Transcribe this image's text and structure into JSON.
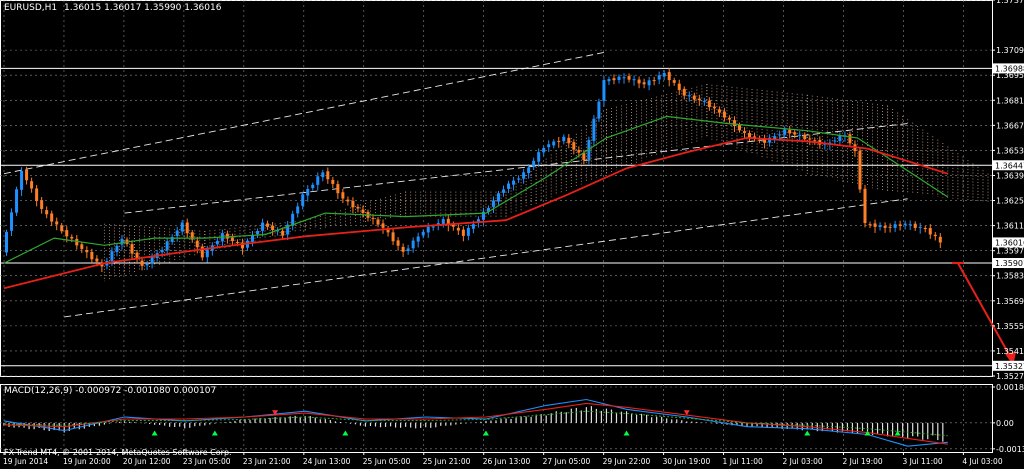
{
  "window": {
    "symbol": "EURUSD,H1",
    "ohlc": "1.36015 1.36017 1.35990 1.36016",
    "copyright": "FX-Trend MT4, © 2001-2014, MetaQuotes Software Corp."
  },
  "colors": {
    "background": "#000000",
    "grid": "#8a8a8a",
    "bull": "#1e90ff",
    "bear": "#ff7f27",
    "ma_slow": "#e8201a",
    "ma_fast": "#2fa82f",
    "cloud": "#d8a888",
    "arrow": "#e8201a",
    "macd_hist": "#e0e0e0",
    "macd_main": "#1e90ff",
    "macd_signal": "#e8201a",
    "macd_dots": "#2fa82f",
    "marker_up": "#00ff40",
    "marker_down": "#ff3030",
    "price_label_bg": "#ffffff",
    "price_label_fg": "#000000"
  },
  "chart_data": [
    {
      "type": "candlestick",
      "ylim": [
        1.3527,
        1.3737
      ],
      "yticks": [
        1.3737,
        1.3709,
        1.3695,
        1.3681,
        1.3667,
        1.3653,
        1.3639,
        1.3625,
        1.3611,
        1.3597,
        1.3583,
        1.3569,
        1.3555,
        1.3541,
        1.3527
      ],
      "xtick_labels": [
        "19 Jun 2014",
        "19 Jun 20:00",
        "20 Jun 12:00",
        "23 Jun 05:00",
        "23 Jun 21:00",
        "24 Jun 13:00",
        "25 Jun 05:00",
        "25 Jun 21:00",
        "26 Jun 13:00",
        "27 Jun 05:00",
        "29 Jun 22:00",
        "30 Jun 19:00",
        "1 Jul 11:00",
        "2 Jul 03:00",
        "2 Jul 19:00",
        "3 Jul 11:00",
        "4 Jul 03:00"
      ],
      "horizontal_levels": [
        {
          "value": 1.36988,
          "label": "1.36988"
        },
        {
          "value": 1.36447,
          "label": "1.36447"
        },
        {
          "value": 1.35901,
          "label": "1.35901"
        },
        {
          "value": 1.35327,
          "label": "1.35327"
        }
      ],
      "current_price": {
        "value": 1.36016,
        "label": "1.36016"
      },
      "price_path": [
        [
          0,
          1.3596
        ],
        [
          4,
          1.3642
        ],
        [
          8,
          1.362
        ],
        [
          12,
          1.3608
        ],
        [
          16,
          1.3598
        ],
        [
          20,
          1.3588
        ],
        [
          24,
          1.3604
        ],
        [
          28,
          1.3588
        ],
        [
          32,
          1.3598
        ],
        [
          36,
          1.3612
        ],
        [
          40,
          1.3594
        ],
        [
          44,
          1.3606
        ],
        [
          48,
          1.3599
        ],
        [
          52,
          1.3612
        ],
        [
          56,
          1.3606
        ],
        [
          60,
          1.3628
        ],
        [
          64,
          1.3641
        ],
        [
          68,
          1.3626
        ],
        [
          72,
          1.3618
        ],
        [
          76,
          1.361
        ],
        [
          80,
          1.3596
        ],
        [
          84,
          1.3608
        ],
        [
          88,
          1.3614
        ],
        [
          92,
          1.3606
        ],
        [
          96,
          1.3618
        ],
        [
          100,
          1.3632
        ],
        [
          104,
          1.364
        ],
        [
          108,
          1.3655
        ],
        [
          112,
          1.366
        ],
        [
          116,
          1.3648
        ],
        [
          120,
          1.3692
        ],
        [
          124,
          1.3694
        ],
        [
          128,
          1.369
        ],
        [
          132,
          1.3696
        ],
        [
          136,
          1.3684
        ],
        [
          140,
          1.368
        ],
        [
          144,
          1.3672
        ],
        [
          148,
          1.3662
        ],
        [
          152,
          1.3658
        ],
        [
          156,
          1.3664
        ],
        [
          160,
          1.366
        ],
        [
          164,
          1.3656
        ],
        [
          168,
          1.3662
        ],
        [
          170,
          1.3652
        ],
        [
          172,
          1.3612
        ],
        [
          176,
          1.361
        ],
        [
          180,
          1.3612
        ],
        [
          184,
          1.3609
        ],
        [
          187,
          1.3602
        ]
      ],
      "channel": {
        "upper": [
          [
            0,
            1.364
          ],
          [
            120,
            1.3708
          ]
        ],
        "lower": [
          [
            12,
            1.356
          ],
          [
            180,
            1.3626
          ]
        ],
        "middle": [
          [
            24,
            1.3618
          ],
          [
            180,
            1.3668
          ]
        ]
      },
      "ma_slow": [
        [
          0,
          1.3576
        ],
        [
          20,
          1.359
        ],
        [
          40,
          1.3598
        ],
        [
          60,
          1.3605
        ],
        [
          80,
          1.361
        ],
        [
          100,
          1.3614
        ],
        [
          112,
          1.3628
        ],
        [
          124,
          1.3643
        ],
        [
          136,
          1.3652
        ],
        [
          148,
          1.366
        ],
        [
          160,
          1.3658
        ],
        [
          172,
          1.3654
        ],
        [
          188,
          1.364
        ]
      ],
      "ma_fast": [
        [
          0,
          1.359
        ],
        [
          10,
          1.3604
        ],
        [
          20,
          1.36
        ],
        [
          30,
          1.3604
        ],
        [
          40,
          1.3604
        ],
        [
          52,
          1.3606
        ],
        [
          64,
          1.3618
        ],
        [
          80,
          1.3616
        ],
        [
          96,
          1.3618
        ],
        [
          108,
          1.3638
        ],
        [
          120,
          1.366
        ],
        [
          132,
          1.3672
        ],
        [
          144,
          1.3668
        ],
        [
          160,
          1.3664
        ],
        [
          170,
          1.366
        ],
        [
          188,
          1.3627
        ]
      ],
      "cloud": [
        [
          20,
          1.358,
          1.3612
        ],
        [
          40,
          1.3596,
          1.3608
        ],
        [
          60,
          1.3608,
          1.3614
        ],
        [
          80,
          1.3616,
          1.363
        ],
        [
          100,
          1.3616,
          1.363
        ],
        [
          120,
          1.364,
          1.3676
        ],
        [
          140,
          1.366,
          1.369
        ],
        [
          160,
          1.364,
          1.3684
        ],
        [
          176,
          1.363,
          1.3678
        ],
        [
          196,
          1.3624,
          1.364
        ]
      ]
    },
    {
      "type": "macd",
      "title": "MACD(12,26,9) -0.000972 -0.001080 0.000107",
      "ylim": [
        -0.0015,
        0.002
      ],
      "yticks": [
        0.001845,
        0.0,
        -0.001338
      ],
      "ytick_labels": [
        "0.001845",
        "0.00",
        "-0.001338"
      ],
      "histogram": [
        [
          0,
          -0.0002
        ],
        [
          12,
          -0.0005
        ],
        [
          24,
          0.0001
        ],
        [
          36,
          -0.0003
        ],
        [
          48,
          0.0002
        ],
        [
          60,
          0.0004
        ],
        [
          72,
          -0.0002
        ],
        [
          84,
          -0.0003
        ],
        [
          96,
          0.0001
        ],
        [
          108,
          0.0005
        ],
        [
          116,
          0.0009
        ],
        [
          124,
          0.0006
        ],
        [
          136,
          0.0001
        ],
        [
          148,
          -0.0002
        ],
        [
          160,
          -0.0004
        ],
        [
          172,
          -0.0006
        ],
        [
          188,
          -0.001
        ]
      ],
      "macd": [
        [
          0,
          0.0001
        ],
        [
          12,
          -0.0004
        ],
        [
          24,
          0.0003
        ],
        [
          36,
          0.0001
        ],
        [
          48,
          0.0003
        ],
        [
          60,
          0.0006
        ],
        [
          72,
          0.0001
        ],
        [
          84,
          0.0003
        ],
        [
          96,
          0.0002
        ],
        [
          108,
          0.0009
        ],
        [
          116,
          0.0012
        ],
        [
          124,
          0.0007
        ],
        [
          136,
          0.0003
        ],
        [
          148,
          -0.0002
        ],
        [
          160,
          -0.0003
        ],
        [
          172,
          -0.0006
        ],
        [
          180,
          -0.0012
        ],
        [
          188,
          -0.001
        ]
      ],
      "signal": [
        [
          0,
          -0.0001
        ],
        [
          12,
          -0.0002
        ],
        [
          24,
          0.0002
        ],
        [
          36,
          0.0002
        ],
        [
          48,
          0.0003
        ],
        [
          60,
          0.0005
        ],
        [
          72,
          0.0002
        ],
        [
          84,
          0.0002
        ],
        [
          96,
          0.0003
        ],
        [
          108,
          0.0007
        ],
        [
          116,
          0.001
        ],
        [
          124,
          0.0008
        ],
        [
          136,
          0.0004
        ],
        [
          148,
          0.0
        ],
        [
          160,
          -0.0002
        ],
        [
          172,
          -0.0005
        ],
        [
          188,
          -0.0011
        ]
      ],
      "markers_up": [
        30,
        42,
        68,
        96,
        124,
        160,
        172,
        178
      ],
      "markers_down": [
        54,
        136
      ]
    }
  ]
}
